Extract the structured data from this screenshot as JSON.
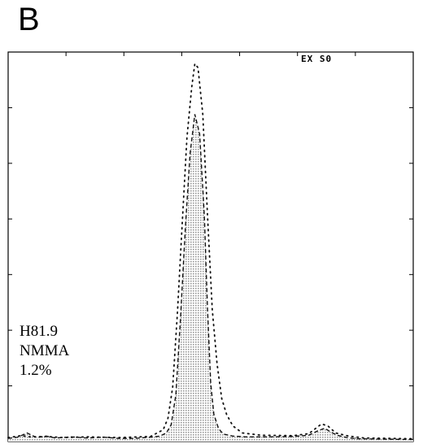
{
  "figure": {
    "panel_label": "B",
    "plot_tag": "EX S0",
    "annotation": {
      "line1": "H81.9",
      "line2": "NMMA",
      "line3": "1.2%"
    }
  },
  "chart_data": {
    "type": "histogram",
    "title": "",
    "xlabel": "",
    "ylabel": "",
    "xlim": [
      0,
      256
    ],
    "ylim": [
      0,
      100
    ],
    "x_tick_count": 7,
    "y_tick_count": 7,
    "grid": false,
    "colors": {
      "filled": "#9a9a9a",
      "outline": "#111111",
      "overlay": "#111111"
    },
    "series": [
      {
        "style": "shaded-dashed",
        "points": [
          [
            0,
            0.8
          ],
          [
            6,
            1.1
          ],
          [
            12,
            2.2
          ],
          [
            18,
            1.0
          ],
          [
            24,
            1.4
          ],
          [
            30,
            0.9
          ],
          [
            40,
            1.2
          ],
          [
            50,
            0.9
          ],
          [
            60,
            1.1
          ],
          [
            70,
            0.8
          ],
          [
            80,
            0.8
          ],
          [
            90,
            1.1
          ],
          [
            96,
            1.4
          ],
          [
            100,
            2.2
          ],
          [
            103,
            4.3
          ],
          [
            106,
            12
          ],
          [
            109,
            32
          ],
          [
            112,
            55
          ],
          [
            115,
            74
          ],
          [
            118,
            84
          ],
          [
            121,
            79
          ],
          [
            124,
            58
          ],
          [
            126,
            34
          ],
          [
            128,
            15
          ],
          [
            130,
            7
          ],
          [
            133,
            3.3
          ],
          [
            136,
            1.9
          ],
          [
            142,
            1.4
          ],
          [
            150,
            1.2
          ],
          [
            165,
            1.2
          ],
          [
            180,
            1.3
          ],
          [
            190,
            1.6
          ],
          [
            196,
            2.8
          ],
          [
            200,
            3.4
          ],
          [
            204,
            2.4
          ],
          [
            208,
            1.6
          ],
          [
            214,
            1.0
          ],
          [
            220,
            0.7
          ],
          [
            256,
            0.5
          ]
        ]
      },
      {
        "style": "dotted",
        "points": [
          [
            0,
            1.0
          ],
          [
            8,
            1.5
          ],
          [
            14,
            1.2
          ],
          [
            24,
            1.3
          ],
          [
            35,
            1.0
          ],
          [
            50,
            1.2
          ],
          [
            70,
            1.0
          ],
          [
            90,
            1.3
          ],
          [
            98,
            3.0
          ],
          [
            101,
            6
          ],
          [
            104,
            14
          ],
          [
            107,
            33
          ],
          [
            110,
            56
          ],
          [
            113,
            78
          ],
          [
            116,
            91
          ],
          [
            118,
            97
          ],
          [
            120,
            96
          ],
          [
            123,
            84
          ],
          [
            126,
            58
          ],
          [
            129,
            34
          ],
          [
            132,
            20
          ],
          [
            135,
            11
          ],
          [
            138,
            7
          ],
          [
            142,
            4
          ],
          [
            148,
            2.2
          ],
          [
            160,
            1.6
          ],
          [
            180,
            1.5
          ],
          [
            190,
            2.0
          ],
          [
            198,
            4.5
          ],
          [
            202,
            4.0
          ],
          [
            207,
            2.2
          ],
          [
            215,
            1.4
          ],
          [
            225,
            0.9
          ],
          [
            256,
            0.7
          ]
        ]
      }
    ]
  }
}
